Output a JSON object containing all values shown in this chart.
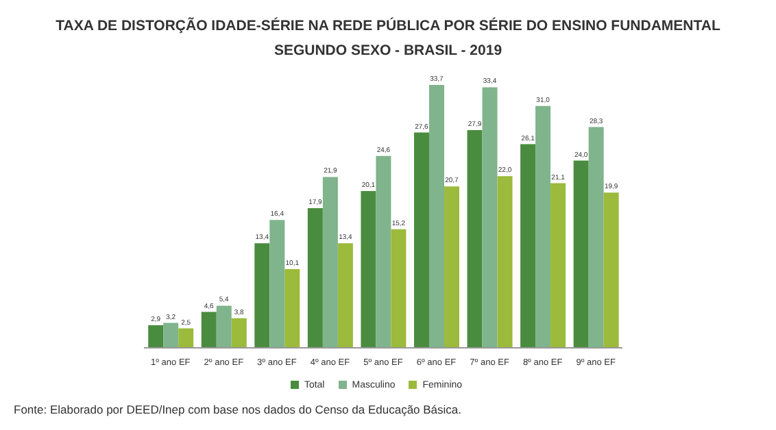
{
  "chart_data": {
    "type": "bar",
    "title": "TAXA DE DISTORÇÃO IDADE-SÉRIE NA REDE PÚBLICA POR SÉRIE DO ENSINO FUNDAMENTAL\nSEGUNDO SEXO - BRASIL - 2019",
    "categories": [
      "1º ano EF",
      "2º ano EF",
      "3º ano EF",
      "4º ano EF",
      "5º ano EF",
      "6º ano EF",
      "7º ano EF",
      "8º ano EF",
      "9º ano EF"
    ],
    "series": [
      {
        "name": "Total",
        "color": "#4a8c3f",
        "values": [
          2.9,
          4.6,
          13.4,
          17.9,
          20.1,
          27.6,
          27.9,
          26.1,
          24.0
        ],
        "value_labels": [
          "2,9",
          "4,6",
          "13,4",
          "17,9",
          "20,1",
          "27,6",
          "27,9",
          "26,1",
          "24,0"
        ]
      },
      {
        "name": "Masculino",
        "color": "#80b48c",
        "values": [
          3.2,
          5.4,
          16.4,
          21.9,
          24.6,
          33.7,
          33.4,
          31.0,
          28.3
        ],
        "value_labels": [
          "3,2",
          "5,4",
          "16,4",
          "21,9",
          "24,6",
          "33,7",
          "33,4",
          "31,0",
          "28,3"
        ]
      },
      {
        "name": "Feminino",
        "color": "#9cba3c",
        "values": [
          2.5,
          3.8,
          10.1,
          13.4,
          15.2,
          20.7,
          22.0,
          21.1,
          19.9
        ],
        "value_labels": [
          "2,5",
          "3,8",
          "10,1",
          "13,4",
          "15,2",
          "20,7",
          "22,0",
          "21,1",
          "19,9"
        ]
      }
    ],
    "legend": "bottom",
    "grid": false,
    "annotations": [
      "Fonte: Elaborado por DEED/Inep com base nos dados do Censo da Educação Básica."
    ]
  }
}
